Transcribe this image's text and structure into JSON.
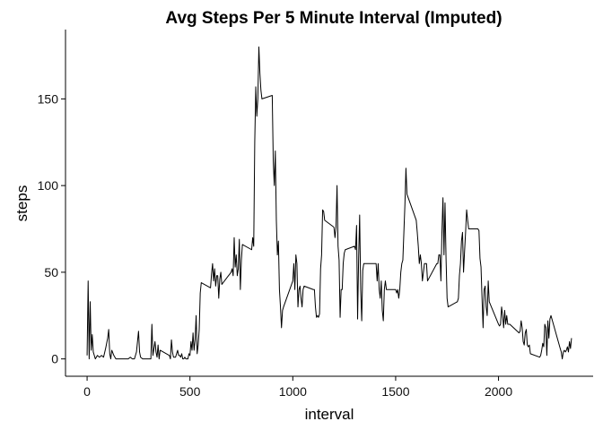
{
  "chart_data": {
    "type": "line",
    "title": "Avg Steps Per 5 Minute Interval (Imputed)",
    "xlabel": "interval",
    "ylabel": "steps",
    "xlim": [
      -105,
      2460
    ],
    "ylim": [
      -10,
      190
    ],
    "x_ticks": [
      0,
      500,
      1000,
      1500,
      2000
    ],
    "y_ticks": [
      0,
      50,
      100,
      150
    ],
    "x_tick_labels": [
      "0",
      "500",
      "1000",
      "1500",
      "2000"
    ],
    "y_tick_labels": [
      "0",
      "50",
      "100",
      "150"
    ],
    "grid": false,
    "series": [
      {
        "points": [
          [
            0,
            2
          ],
          [
            5,
            45
          ],
          [
            10,
            0
          ],
          [
            15,
            33
          ],
          [
            20,
            5
          ],
          [
            25,
            14
          ],
          [
            30,
            4
          ],
          [
            40,
            0
          ],
          [
            50,
            2
          ],
          [
            60,
            1
          ],
          [
            70,
            2
          ],
          [
            80,
            1
          ],
          [
            90,
            6
          ],
          [
            100,
            12
          ],
          [
            105,
            17
          ],
          [
            110,
            3
          ],
          [
            115,
            0
          ],
          [
            120,
            5
          ],
          [
            130,
            2
          ],
          [
            140,
            0
          ],
          [
            150,
            0
          ],
          [
            160,
            0
          ],
          [
            170,
            0
          ],
          [
            180,
            0
          ],
          [
            190,
            0
          ],
          [
            200,
            0
          ],
          [
            210,
            1
          ],
          [
            220,
            0
          ],
          [
            230,
            0
          ],
          [
            240,
            4
          ],
          [
            250,
            16
          ],
          [
            255,
            4
          ],
          [
            260,
            1
          ],
          [
            270,
            0
          ],
          [
            280,
            0
          ],
          [
            290,
            0
          ],
          [
            300,
            0
          ],
          [
            310,
            0
          ],
          [
            315,
            20
          ],
          [
            320,
            2
          ],
          [
            330,
            10
          ],
          [
            335,
            4
          ],
          [
            340,
            1
          ],
          [
            345,
            8
          ],
          [
            350,
            0
          ],
          [
            355,
            5
          ],
          [
            400,
            2
          ],
          [
            405,
            0
          ],
          [
            410,
            11
          ],
          [
            415,
            4
          ],
          [
            420,
            1
          ],
          [
            430,
            1
          ],
          [
            440,
            5
          ],
          [
            445,
            2
          ],
          [
            450,
            2
          ],
          [
            455,
            1
          ],
          [
            460,
            3
          ],
          [
            465,
            0
          ],
          [
            470,
            0
          ],
          [
            475,
            1
          ],
          [
            480,
            0
          ],
          [
            485,
            0
          ],
          [
            490,
            0
          ],
          [
            495,
            3
          ],
          [
            500,
            2
          ],
          [
            505,
            10
          ],
          [
            510,
            5
          ],
          [
            515,
            15
          ],
          [
            520,
            5
          ],
          [
            525,
            11
          ],
          [
            530,
            25
          ],
          [
            535,
            3
          ],
          [
            540,
            8
          ],
          [
            545,
            17
          ],
          [
            550,
            38
          ],
          [
            555,
            44
          ],
          [
            600,
            41
          ],
          [
            605,
            49
          ],
          [
            610,
            55
          ],
          [
            615,
            45
          ],
          [
            620,
            52
          ],
          [
            625,
            42
          ],
          [
            630,
            48
          ],
          [
            635,
            48
          ],
          [
            640,
            35
          ],
          [
            645,
            46
          ],
          [
            650,
            50
          ],
          [
            655,
            43
          ],
          [
            700,
            50
          ],
          [
            705,
            52
          ],
          [
            710,
            48
          ],
          [
            715,
            70
          ],
          [
            720,
            53
          ],
          [
            725,
            60
          ],
          [
            730,
            48
          ],
          [
            735,
            52
          ],
          [
            740,
            69
          ],
          [
            745,
            40
          ],
          [
            750,
            57
          ],
          [
            755,
            66
          ],
          [
            800,
            63
          ],
          [
            805,
            70
          ],
          [
            810,
            65
          ],
          [
            815,
            125
          ],
          [
            820,
            157
          ],
          [
            825,
            140
          ],
          [
            830,
            150
          ],
          [
            835,
            180
          ],
          [
            840,
            165
          ],
          [
            845,
            155
          ],
          [
            850,
            150
          ],
          [
            900,
            152
          ],
          [
            905,
            114
          ],
          [
            910,
            100
          ],
          [
            915,
            120
          ],
          [
            920,
            80
          ],
          [
            925,
            60
          ],
          [
            930,
            68
          ],
          [
            935,
            40
          ],
          [
            940,
            30
          ],
          [
            945,
            18
          ],
          [
            950,
            28
          ],
          [
            955,
            30
          ],
          [
            1000,
            45
          ],
          [
            1005,
            55
          ],
          [
            1010,
            40
          ],
          [
            1015,
            60
          ],
          [
            1020,
            55
          ],
          [
            1025,
            30
          ],
          [
            1030,
            40
          ],
          [
            1035,
            42
          ],
          [
            1040,
            35
          ],
          [
            1045,
            30
          ],
          [
            1050,
            40
          ],
          [
            1055,
            42
          ],
          [
            1100,
            40
          ],
          [
            1105,
            40
          ],
          [
            1110,
            30
          ],
          [
            1115,
            24
          ],
          [
            1120,
            25
          ],
          [
            1125,
            24
          ],
          [
            1130,
            26
          ],
          [
            1135,
            52
          ],
          [
            1140,
            60
          ],
          [
            1145,
            86
          ],
          [
            1150,
            85
          ],
          [
            1155,
            80
          ],
          [
            1200,
            76
          ],
          [
            1205,
            70
          ],
          [
            1210,
            76
          ],
          [
            1215,
            100
          ],
          [
            1220,
            65
          ],
          [
            1225,
            57
          ],
          [
            1230,
            24
          ],
          [
            1235,
            40
          ],
          [
            1240,
            40
          ],
          [
            1245,
            55
          ],
          [
            1250,
            61
          ],
          [
            1255,
            63
          ],
          [
            1300,
            65
          ],
          [
            1305,
            63
          ],
          [
            1310,
            77
          ],
          [
            1315,
            23
          ],
          [
            1320,
            58
          ],
          [
            1325,
            83
          ],
          [
            1330,
            40
          ],
          [
            1335,
            22
          ],
          [
            1340,
            51
          ],
          [
            1345,
            55
          ],
          [
            1350,
            55
          ],
          [
            1355,
            55
          ],
          [
            1400,
            55
          ],
          [
            1405,
            55
          ],
          [
            1410,
            45
          ],
          [
            1415,
            55
          ],
          [
            1420,
            40
          ],
          [
            1425,
            35
          ],
          [
            1430,
            45
          ],
          [
            1435,
            28
          ],
          [
            1440,
            22
          ],
          [
            1445,
            40
          ],
          [
            1450,
            45
          ],
          [
            1455,
            40
          ],
          [
            1500,
            40
          ],
          [
            1505,
            38
          ],
          [
            1510,
            40
          ],
          [
            1515,
            35
          ],
          [
            1520,
            40
          ],
          [
            1525,
            50
          ],
          [
            1530,
            55
          ],
          [
            1535,
            57
          ],
          [
            1540,
            73
          ],
          [
            1545,
            89
          ],
          [
            1550,
            110
          ],
          [
            1555,
            95
          ],
          [
            1600,
            80
          ],
          [
            1605,
            73
          ],
          [
            1610,
            65
          ],
          [
            1615,
            55
          ],
          [
            1620,
            60
          ],
          [
            1625,
            55
          ],
          [
            1630,
            45
          ],
          [
            1635,
            50
          ],
          [
            1640,
            55
          ],
          [
            1645,
            55
          ],
          [
            1650,
            55
          ],
          [
            1655,
            45
          ],
          [
            1700,
            55
          ],
          [
            1705,
            55
          ],
          [
            1710,
            60
          ],
          [
            1715,
            60
          ],
          [
            1720,
            45
          ],
          [
            1725,
            73
          ],
          [
            1730,
            93
          ],
          [
            1735,
            60
          ],
          [
            1740,
            90
          ],
          [
            1745,
            58
          ],
          [
            1750,
            35
          ],
          [
            1755,
            30
          ],
          [
            1800,
            33
          ],
          [
            1805,
            35
          ],
          [
            1810,
            48
          ],
          [
            1815,
            55
          ],
          [
            1820,
            68
          ],
          [
            1825,
            73
          ],
          [
            1830,
            50
          ],
          [
            1835,
            62
          ],
          [
            1840,
            73
          ],
          [
            1845,
            86
          ],
          [
            1850,
            80
          ],
          [
            1855,
            75
          ],
          [
            1900,
            75
          ],
          [
            1905,
            74
          ],
          [
            1910,
            58
          ],
          [
            1915,
            53
          ],
          [
            1920,
            35
          ],
          [
            1925,
            18
          ],
          [
            1930,
            40
          ],
          [
            1935,
            42
          ],
          [
            1940,
            30
          ],
          [
            1945,
            25
          ],
          [
            1950,
            45
          ],
          [
            1955,
            33
          ],
          [
            2000,
            20
          ],
          [
            2005,
            19
          ],
          [
            2010,
            20
          ],
          [
            2015,
            30
          ],
          [
            2020,
            25
          ],
          [
            2025,
            18
          ],
          [
            2030,
            28
          ],
          [
            2035,
            20
          ],
          [
            2040,
            25
          ],
          [
            2045,
            20
          ],
          [
            2050,
            20
          ],
          [
            2055,
            20
          ],
          [
            2100,
            15
          ],
          [
            2105,
            16
          ],
          [
            2110,
            22
          ],
          [
            2115,
            18
          ],
          [
            2120,
            10
          ],
          [
            2125,
            8
          ],
          [
            2130,
            15
          ],
          [
            2135,
            17
          ],
          [
            2140,
            8
          ],
          [
            2145,
            7
          ],
          [
            2150,
            8
          ],
          [
            2155,
            3
          ],
          [
            2200,
            1
          ],
          [
            2205,
            2
          ],
          [
            2210,
            5
          ],
          [
            2215,
            9
          ],
          [
            2220,
            7
          ],
          [
            2225,
            20
          ],
          [
            2230,
            18
          ],
          [
            2235,
            2
          ],
          [
            2240,
            22
          ],
          [
            2245,
            12
          ],
          [
            2250,
            23
          ],
          [
            2255,
            25
          ],
          [
            2300,
            6
          ],
          [
            2305,
            4
          ],
          [
            2310,
            0
          ],
          [
            2315,
            4
          ],
          [
            2320,
            5
          ],
          [
            2325,
            4
          ],
          [
            2330,
            5
          ],
          [
            2335,
            7
          ],
          [
            2340,
            4
          ],
          [
            2345,
            10
          ],
          [
            2350,
            6
          ],
          [
            2355,
            12
          ]
        ]
      }
    ]
  }
}
